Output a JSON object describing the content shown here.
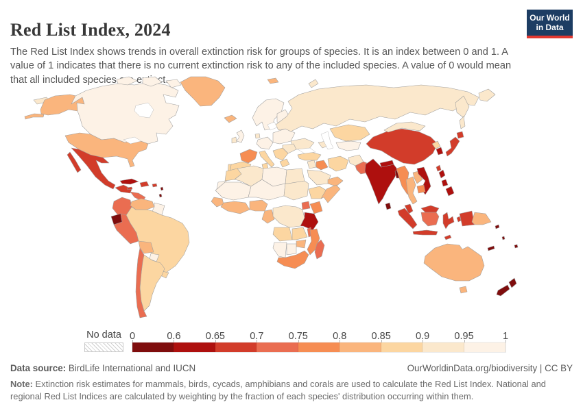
{
  "header": {
    "title": "Red List Index, 2024",
    "subtitle": "The Red List Index shows trends in overall extinction risk for groups of species. It is an index between 0 and 1. A value of 1 indicates that there is no current extinction risk to any of the included species. A value of 0 would mean that all included species are extinct."
  },
  "logo": {
    "line1": "Our World",
    "line2": "in Data",
    "bg_color": "#1d3d63",
    "accent_color": "#e23830"
  },
  "footer": {
    "datasource_label": "Data source:",
    "datasource_text": " BirdLife International and IUCN",
    "rights": "OurWorldinData.org/biodiversity | CC BY",
    "note_label": "Note:",
    "note_text": " Extinction risk estimates for mammals, birds, cycads, amphibians and corals are used to calculate the Red List Index. National and regional Red List Indices are calculated by weighting by the fraction of each species' distribution occurring within them."
  },
  "chart_data": {
    "type": "choropleth",
    "title": "Red List Index, 2024",
    "unit_range": [
      0,
      1
    ],
    "no_data_label": "No data",
    "legend_ticks": [
      "0",
      "0.6",
      "0.65",
      "0.7",
      "0.75",
      "0.8",
      "0.85",
      "0.9",
      "0.95",
      "1"
    ],
    "legend_colors": [
      "#7f0d0d",
      "#ae100e",
      "#d23c2a",
      "#ea6d51",
      "#f68d53",
      "#fab57d",
      "#fcd6a1",
      "#fbe8cc",
      "#fdf2e6"
    ],
    "bin_ranges": [
      "0–0.6",
      "0.6–0.65",
      "0.65–0.7",
      "0.7–0.75",
      "0.75–0.8",
      "0.8–0.85",
      "0.85–0.9",
      "0.9–0.95",
      "0.95–1"
    ],
    "legend_position": "bottom",
    "regions": {
      "canada": 8,
      "usa": 5,
      "greenland": 5,
      "iceland": 5,
      "mexico": 2,
      "cuba": 1,
      "hispaniola": 2,
      "jamaica": 2,
      "puerto_rico": 2,
      "lesser_antilles": 0,
      "guatemala_nicaragua": 2,
      "costa_rica_panama": 3,
      "colombia": 3,
      "venezuela": 5,
      "guyanas": 8,
      "ecuador": 0,
      "peru": 3,
      "brazil": 6,
      "bolivia": 5,
      "paraguay": 8,
      "uruguay": 6,
      "argentina": 6,
      "chile": 3,
      "uk": 8,
      "ireland": 7,
      "scandinavia": 8,
      "finland": 8,
      "denmark": 7,
      "france": 4,
      "spain": 6,
      "portugal": 6,
      "central_europe": 8,
      "eastern_europe": 8,
      "ukraine": 7,
      "romania": 7,
      "italy": 6,
      "balkans": 6,
      "greece": 6,
      "svalbard": 5,
      "russia": 7,
      "kazakhstan": 6,
      "central_asia": 8,
      "caucasus": 7,
      "turkey": 6,
      "levant": 7,
      "iraq": 4,
      "iran": 6,
      "saudi_arabia": 7,
      "yemen_oman": 5,
      "afghanistan": 7,
      "pakistan": 3,
      "india": 1,
      "nepal": 1,
      "bangladesh": 0,
      "sri_lanka": 0,
      "china": 2,
      "mongolia": 7,
      "north_korea": 6,
      "south_korea": 1,
      "japan": 2,
      "taiwan": 2,
      "myanmar": 4,
      "thailand": 5,
      "laos": 5,
      "vietnam": 1,
      "cambodia": 4,
      "malaysia": 2,
      "philippines": 1,
      "indonesia": 2,
      "borneo_kalimantan": 3,
      "papua_new_guinea": 5,
      "australia": 5,
      "tasmania": 5,
      "new_zealand": 0,
      "new_caledonia": 0,
      "fiji": 0,
      "solomon_islands": 0,
      "vanuatu": 0,
      "morocco": 6,
      "western_sahara": 8,
      "algeria": 7,
      "tunisia": 6,
      "libya": 8,
      "egypt": 7,
      "mauritania_mali": 8,
      "niger_chad": 8,
      "sudan": 7,
      "senegal_guinea": 5,
      "west_africa_coast": 5,
      "nigeria": 5,
      "cameroon_gabon": 5,
      "ethiopia": 6,
      "somalia": 5,
      "kenya": 4,
      "uganda": 3,
      "drc": 7,
      "tanzania": 1,
      "angola": 6,
      "zambia": 6,
      "malawi": 3,
      "mozambique": 4,
      "zimbabwe": 5,
      "namibia": 8,
      "botswana": 8,
      "south_africa": 4,
      "madagascar": 3
    }
  }
}
